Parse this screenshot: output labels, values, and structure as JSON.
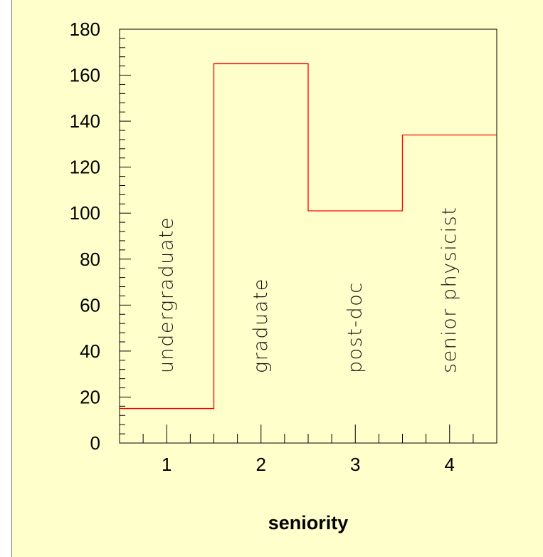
{
  "colors": {
    "background": "#ffffcc",
    "axis": "#000000",
    "line": "#ff0000",
    "left_border": "#808080"
  },
  "chart_data": {
    "type": "line",
    "step": true,
    "x": [
      1,
      2,
      3,
      4
    ],
    "values": [
      15,
      165,
      101,
      134
    ],
    "xlim": [
      0.5,
      4.5
    ],
    "ylim": [
      0,
      180
    ],
    "x_ticks": [
      1,
      2,
      3,
      4
    ],
    "y_ticks": [
      0,
      20,
      40,
      60,
      80,
      100,
      120,
      140,
      160,
      180
    ],
    "xlabel": "seniority",
    "ylabel": "",
    "title": "",
    "annotations": [
      "undergraduate",
      "graduate",
      "post-doc",
      "senior physicist"
    ],
    "grid": false
  }
}
